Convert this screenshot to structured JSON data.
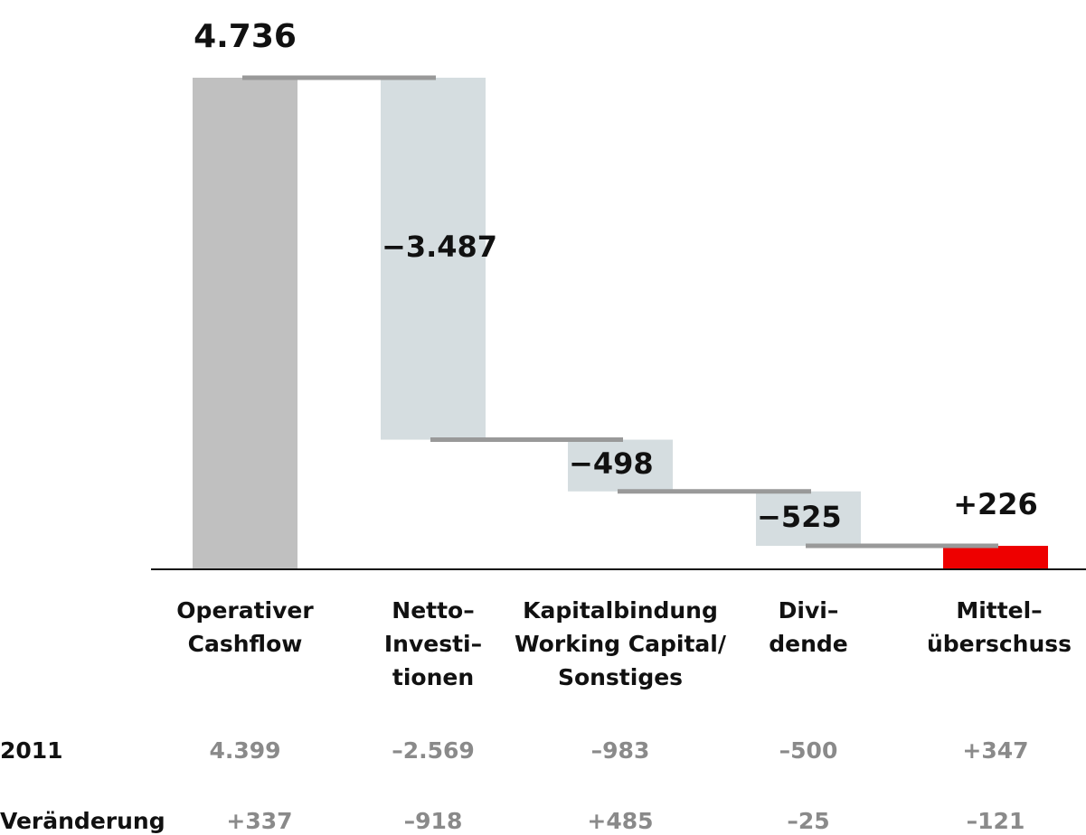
{
  "chart_data": {
    "type": "waterfall",
    "categories": [
      [
        "Operativer",
        "Cashflow"
      ],
      [
        "Netto–",
        "Investi–",
        "tionen"
      ],
      [
        "Kapitalbindung",
        "Working Capital/",
        "Sonstiges"
      ],
      [
        "Divi–",
        "dende"
      ],
      [
        "Mittel–",
        "überschuss"
      ]
    ],
    "values": [
      4736,
      -3487,
      -498,
      -525,
      226
    ],
    "value_labels": [
      "4.736",
      "−3.487",
      "−498",
      "−525",
      "+226"
    ],
    "colors": [
      "#c0c0c0",
      "#d5dde0",
      "#d5dde0",
      "#d5dde0",
      "#ee0000"
    ],
    "ylim": [
      0,
      5000
    ]
  },
  "table": {
    "rows": [
      [
        "2011",
        "4.399",
        "–2.569",
        "–983",
        "–500",
        "+347"
      ],
      [
        "Veränderung",
        "+337",
        "–918",
        "+485",
        "–25",
        "–121"
      ]
    ]
  }
}
